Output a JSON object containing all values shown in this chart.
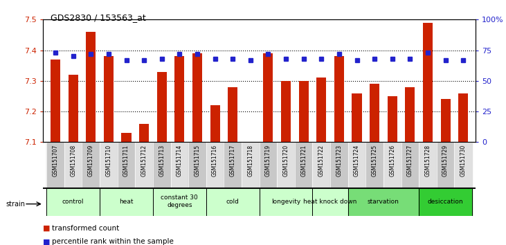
{
  "title": "GDS2830 / 153563_at",
  "samples": [
    "GSM151707",
    "GSM151708",
    "GSM151709",
    "GSM151710",
    "GSM151711",
    "GSM151712",
    "GSM151713",
    "GSM151714",
    "GSM151715",
    "GSM151716",
    "GSM151717",
    "GSM151718",
    "GSM151719",
    "GSM151720",
    "GSM151721",
    "GSM151722",
    "GSM151723",
    "GSM151724",
    "GSM151725",
    "GSM151726",
    "GSM151727",
    "GSM151728",
    "GSM151729",
    "GSM151730"
  ],
  "bar_values": [
    7.37,
    7.32,
    7.46,
    7.38,
    7.13,
    7.16,
    7.33,
    7.38,
    7.39,
    7.22,
    7.28,
    7.1,
    7.39,
    7.3,
    7.3,
    7.31,
    7.38,
    7.26,
    7.29,
    7.25,
    7.28,
    7.49,
    7.24,
    7.26
  ],
  "percentile_values": [
    73,
    70,
    72,
    72,
    67,
    67,
    68,
    72,
    72,
    68,
    68,
    67,
    72,
    68,
    68,
    68,
    72,
    67,
    68,
    68,
    68,
    73,
    67,
    67
  ],
  "ylim_left": [
    7.1,
    7.5
  ],
  "ylim_right": [
    0,
    100
  ],
  "yticks_left": [
    7.1,
    7.2,
    7.3,
    7.4,
    7.5
  ],
  "yticks_right": [
    0,
    25,
    50,
    75,
    100
  ],
  "ytick_labels_right": [
    "0",
    "25",
    "50",
    "75",
    "100%"
  ],
  "bar_color": "#cc2200",
  "dot_color": "#2222cc",
  "groups": [
    {
      "label": "control",
      "samples": [
        "GSM151707",
        "GSM151708",
        "GSM151709"
      ],
      "color": "#ccffcc"
    },
    {
      "label": "heat",
      "samples": [
        "GSM151710",
        "GSM151711",
        "GSM151712"
      ],
      "color": "#ccffcc"
    },
    {
      "label": "constant 30\ndegrees",
      "samples": [
        "GSM151713",
        "GSM151714",
        "GSM151715"
      ],
      "color": "#ccffcc"
    },
    {
      "label": "cold",
      "samples": [
        "GSM151716",
        "GSM151717",
        "GSM151718"
      ],
      "color": "#ccffcc"
    },
    {
      "label": "longevity",
      "samples": [
        "GSM151719",
        "GSM151720",
        "GSM151721"
      ],
      "color": "#ccffcc"
    },
    {
      "label": "heat knock down",
      "samples": [
        "GSM151722",
        "GSM151723"
      ],
      "color": "#ccffcc"
    },
    {
      "label": "starvation",
      "samples": [
        "GSM151724",
        "GSM151725",
        "GSM151726",
        "GSM151727"
      ],
      "color": "#77dd77"
    },
    {
      "label": "desiccation",
      "samples": [
        "GSM151728",
        "GSM151729",
        "GSM151730"
      ],
      "color": "#33cc33"
    }
  ],
  "tick_label_color_left": "#cc2200",
  "tick_label_color_right": "#2222cc",
  "sample_bg_even": "#c8c8c8",
  "sample_bg_odd": "#e0e0e0"
}
